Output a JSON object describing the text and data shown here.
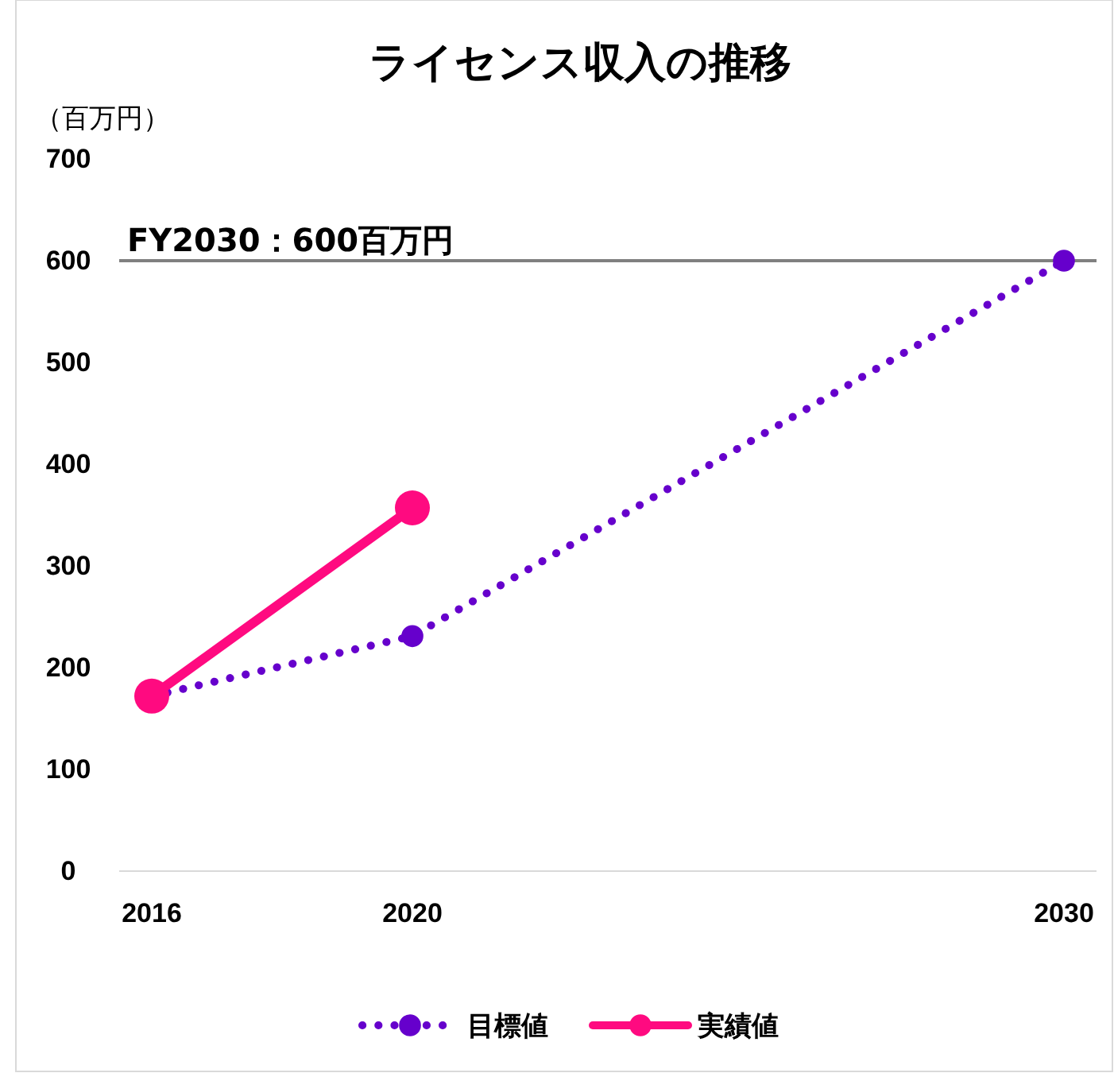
{
  "chart_data": {
    "type": "line",
    "title": "ライセンス収入の推移",
    "ylabel": "（百万円）",
    "xlim": [
      2015.5,
      2030.5
    ],
    "xticks": [
      2016,
      2020,
      2030
    ],
    "ylim": [
      0,
      700
    ],
    "yticks": [
      0,
      100,
      200,
      300,
      400,
      500,
      600,
      700
    ],
    "series": [
      {
        "name": "目標値",
        "color": "#6600cc",
        "x": [
          2016,
          2020,
          2030
        ],
        "values": [
          172,
          231,
          600
        ],
        "line_style": "dotted"
      },
      {
        "name": "実績値",
        "color": "#ff0a80",
        "x": [
          2016,
          2020
        ],
        "values": [
          172,
          357
        ],
        "line_style": "solid"
      }
    ],
    "ref_lines": [
      {
        "axis": "y",
        "value": 600,
        "label": "FY2030：600百万円",
        "color": "#808080"
      }
    ],
    "marker": "circle",
    "grid": false,
    "legend": "bottom"
  }
}
